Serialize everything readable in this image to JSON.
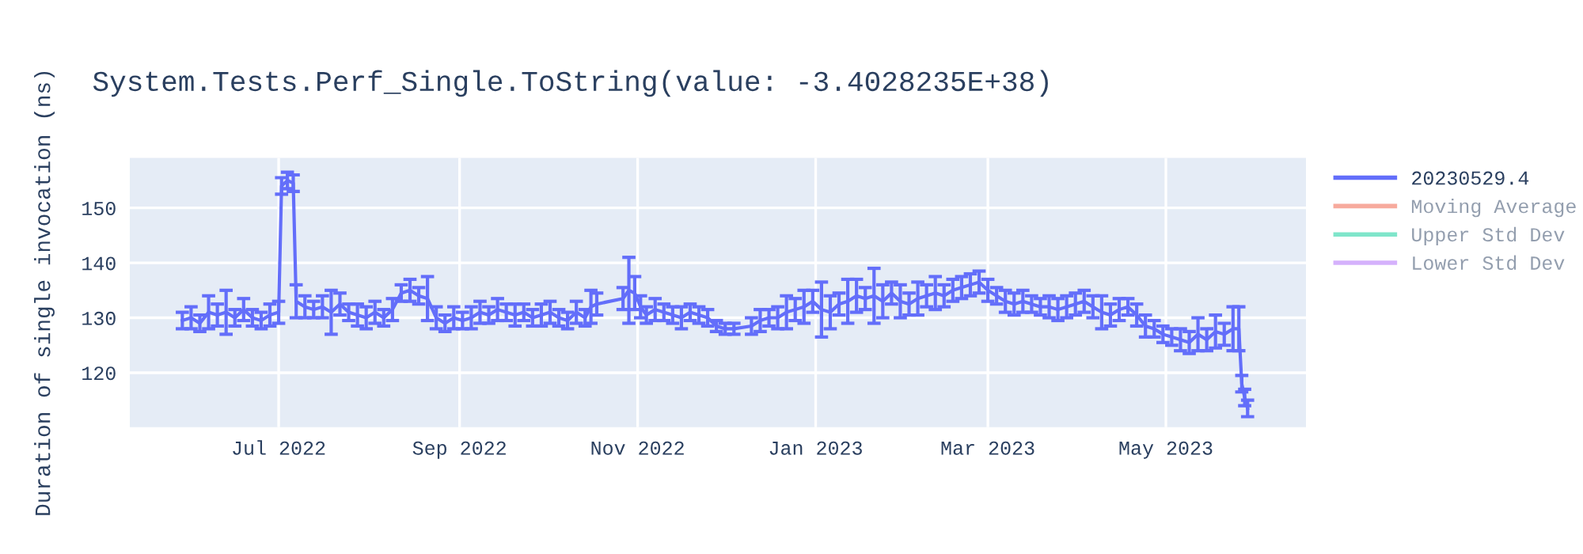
{
  "chart_data": {
    "type": "line",
    "title": "System.Tests.Perf_Single.ToString(value: -3.4028235E+38)",
    "ylabel": "Duration of single invocation (ns)",
    "x": [
      "2022-05-29",
      "2022-06-01",
      "2022-06-04",
      "2022-06-07",
      "2022-06-10",
      "2022-06-13",
      "2022-06-16",
      "2022-06-19",
      "2022-06-22",
      "2022-06-25",
      "2022-06-28",
      "2022-07-01",
      "2022-07-02",
      "2022-07-04",
      "2022-07-06",
      "2022-07-07",
      "2022-07-10",
      "2022-07-13",
      "2022-07-16",
      "2022-07-19",
      "2022-07-22",
      "2022-07-25",
      "2022-07-28",
      "2022-07-31",
      "2022-08-03",
      "2022-08-06",
      "2022-08-09",
      "2022-08-12",
      "2022-08-15",
      "2022-08-18",
      "2022-08-21",
      "2022-08-24",
      "2022-08-27",
      "2022-08-30",
      "2022-09-02",
      "2022-09-05",
      "2022-09-08",
      "2022-09-11",
      "2022-09-14",
      "2022-09-17",
      "2022-09-20",
      "2022-09-23",
      "2022-09-26",
      "2022-09-29",
      "2022-10-02",
      "2022-10-05",
      "2022-10-08",
      "2022-10-11",
      "2022-10-14",
      "2022-10-16",
      "2022-10-18",
      "2022-10-27",
      "2022-10-29",
      "2022-10-31",
      "2022-11-02",
      "2022-11-04",
      "2022-11-07",
      "2022-11-10",
      "2022-11-13",
      "2022-11-16",
      "2022-11-19",
      "2022-11-22",
      "2022-11-25",
      "2022-11-28",
      "2022-12-01",
      "2022-12-04",
      "2022-12-10",
      "2022-12-13",
      "2022-12-16",
      "2022-12-19",
      "2022-12-22",
      "2022-12-25",
      "2022-12-28",
      "2022-12-31",
      "2023-01-03",
      "2023-01-06",
      "2023-01-09",
      "2023-01-12",
      "2023-01-15",
      "2023-01-18",
      "2023-01-21",
      "2023-01-24",
      "2023-01-27",
      "2023-01-30",
      "2023-02-02",
      "2023-02-05",
      "2023-02-08",
      "2023-02-11",
      "2023-02-14",
      "2023-02-17",
      "2023-02-20",
      "2023-02-23",
      "2023-02-26",
      "2023-03-01",
      "2023-03-04",
      "2023-03-07",
      "2023-03-10",
      "2023-03-13",
      "2023-03-16",
      "2023-03-19",
      "2023-03-22",
      "2023-03-25",
      "2023-03-28",
      "2023-03-31",
      "2023-04-03",
      "2023-04-06",
      "2023-04-09",
      "2023-04-12",
      "2023-04-15",
      "2023-04-18",
      "2023-04-21",
      "2023-04-24",
      "2023-04-27",
      "2023-04-30",
      "2023-05-03",
      "2023-05-06",
      "2023-05-09",
      "2023-05-12",
      "2023-05-15",
      "2023-05-18",
      "2023-05-21",
      "2023-05-24",
      "2023-05-26",
      "2023-05-27",
      "2023-05-28",
      "2023-05-29"
    ],
    "series": [
      {
        "name": "20230529.4",
        "color": "#636efa",
        "values": [
          129.5,
          130,
          129,
          131,
          130.5,
          131,
          130,
          131.5,
          130,
          129.5,
          130.5,
          131,
          154,
          155,
          154.5,
          133,
          132,
          131.5,
          132,
          131,
          132.5,
          131,
          130.5,
          130,
          131,
          130,
          131.5,
          134.5,
          135,
          134,
          133.5,
          130,
          129,
          130,
          129.5,
          130,
          131,
          130.5,
          131.5,
          131,
          130.5,
          131,
          130,
          130.5,
          131,
          130,
          129.5,
          131,
          130,
          132,
          132.5,
          133.5,
          135,
          134.5,
          132,
          130.5,
          131.5,
          131,
          130.5,
          130,
          131,
          130.5,
          130,
          128.5,
          128,
          128,
          128.5,
          129.5,
          130,
          130,
          131,
          131.5,
          132,
          133,
          131.5,
          131,
          132.5,
          133,
          134,
          133.5,
          134,
          133,
          134.5,
          133,
          132.5,
          133.5,
          134,
          134.5,
          134,
          135,
          135.5,
          136,
          136.5,
          135,
          134,
          133,
          132.5,
          133,
          132.5,
          132,
          132,
          131.5,
          132,
          132.5,
          133,
          132,
          131,
          130.5,
          131.5,
          132,
          130.5,
          128.5,
          128,
          127,
          126.5,
          126,
          125.5,
          127,
          126,
          127.5,
          127,
          128,
          128,
          118,
          115.5,
          113.5
        ],
        "errors": [
          1.5,
          2,
          1.5,
          3,
          2,
          4,
          1.5,
          2,
          1.5,
          1.5,
          2,
          2,
          1.5,
          1.5,
          1.5,
          3,
          2,
          1.5,
          2,
          4,
          2,
          1.5,
          2,
          2,
          2,
          1.5,
          2,
          1.5,
          2,
          1.5,
          4,
          2,
          1.5,
          2,
          1.5,
          2,
          2,
          1.5,
          2,
          1.5,
          2,
          1.5,
          1.5,
          2,
          2,
          1.5,
          1.5,
          2,
          1.5,
          3,
          2,
          2,
          6,
          3,
          2,
          1.5,
          2,
          1.5,
          1.5,
          2,
          1.5,
          1.5,
          1.5,
          1,
          1,
          1,
          1.5,
          2,
          1.5,
          2,
          3,
          2,
          3,
          2,
          5,
          3,
          2,
          4,
          3,
          2,
          5,
          3,
          2,
          3,
          2,
          3,
          2,
          3,
          2,
          2,
          2,
          2,
          2,
          2,
          1.5,
          2,
          2,
          2,
          1.5,
          1.5,
          2,
          2,
          2,
          2,
          2,
          2,
          3,
          2,
          2,
          1.5,
          2,
          2,
          1.5,
          1.5,
          1.5,
          2,
          2,
          3,
          2,
          3,
          2,
          4,
          4,
          1.5,
          1.5,
          1.5
        ]
      },
      {
        "name": "Moving Average",
        "color": "#ef553b",
        "values": [
          null,
          null,
          null,
          null,
          null,
          null,
          null,
          null,
          null,
          null,
          null,
          null,
          null,
          null,
          null,
          null,
          null,
          null,
          null,
          null,
          null,
          null,
          null,
          null,
          null,
          null,
          null,
          null,
          null,
          null,
          null,
          null,
          null,
          null,
          null,
          null,
          null,
          null,
          null,
          null,
          null,
          null,
          null,
          null,
          null,
          null,
          null,
          null,
          null,
          null,
          null,
          null,
          null,
          null,
          null,
          null,
          null,
          null,
          null,
          null,
          null,
          null,
          null,
          null,
          null,
          null,
          null,
          null,
          null,
          null,
          null,
          null,
          null,
          null,
          null,
          null,
          null,
          null,
          null,
          null,
          null,
          null,
          null,
          null,
          null,
          null,
          null,
          null,
          null,
          null,
          null,
          null,
          null,
          null,
          null,
          null,
          null,
          null,
          null,
          null,
          null,
          null,
          null,
          null,
          null,
          null,
          null,
          null,
          null,
          null,
          null,
          null,
          null,
          null,
          null,
          null,
          null,
          null,
          null,
          null,
          null,
          null,
          null,
          null,
          null,
          null
        ]
      },
      {
        "name": "Upper Std Dev",
        "color": "#00cc96",
        "values": [
          null,
          null,
          null,
          null,
          null,
          null,
          null,
          null,
          null,
          null,
          null,
          null,
          null,
          null,
          null,
          null,
          null,
          null,
          null,
          null,
          null,
          null,
          null,
          null,
          null,
          null,
          null,
          null,
          null,
          null,
          null,
          null,
          null,
          null,
          null,
          null,
          null,
          null,
          null,
          null,
          null,
          null,
          null,
          null,
          null,
          null,
          null,
          null,
          null,
          null,
          null,
          null,
          null,
          null,
          null,
          null,
          null,
          null,
          null,
          null,
          null,
          null,
          null,
          null,
          null,
          null,
          null,
          null,
          null,
          null,
          null,
          null,
          null,
          null,
          null,
          null,
          null,
          null,
          null,
          null,
          null,
          null,
          null,
          null,
          null,
          null,
          null,
          null,
          null,
          null,
          null,
          null,
          null,
          null,
          null,
          null,
          null,
          null,
          null,
          null,
          null,
          null,
          null,
          null,
          null,
          null,
          null,
          null,
          null,
          null,
          null,
          null,
          null,
          null,
          null,
          null,
          null,
          null,
          null,
          null,
          null,
          null,
          null,
          null,
          null,
          null
        ]
      },
      {
        "name": "Lower Std Dev",
        "color": "#ab63fa",
        "values": [
          null,
          null,
          null,
          null,
          null,
          null,
          null,
          null,
          null,
          null,
          null,
          null,
          null,
          null,
          null,
          null,
          null,
          null,
          null,
          null,
          null,
          null,
          null,
          null,
          null,
          null,
          null,
          null,
          null,
          null,
          null,
          null,
          null,
          null,
          null,
          null,
          null,
          null,
          null,
          null,
          null,
          null,
          null,
          null,
          null,
          null,
          null,
          null,
          null,
          null,
          null,
          null,
          null,
          null,
          null,
          null,
          null,
          null,
          null,
          null,
          null,
          null,
          null,
          null,
          null,
          null,
          null,
          null,
          null,
          null,
          null,
          null,
          null,
          null,
          null,
          null,
          null,
          null,
          null,
          null,
          null,
          null,
          null,
          null,
          null,
          null,
          null,
          null,
          null,
          null,
          null,
          null,
          null,
          null,
          null,
          null,
          null,
          null,
          null,
          null,
          null,
          null,
          null,
          null,
          null,
          null,
          null,
          null,
          null,
          null,
          null,
          null,
          null,
          null,
          null,
          null,
          null,
          null,
          null,
          null,
          null,
          null,
          null,
          null,
          null,
          null
        ]
      }
    ],
    "xlim": [
      "2022-05-11",
      "2023-06-18"
    ],
    "xticks": [
      {
        "value": "2022-07-01",
        "label": "Jul 2022"
      },
      {
        "value": "2022-09-01",
        "label": "Sep 2022"
      },
      {
        "value": "2022-11-01",
        "label": "Nov 2022"
      },
      {
        "value": "2023-01-01",
        "label": "Jan 2023"
      },
      {
        "value": "2023-03-01",
        "label": "Mar 2023"
      },
      {
        "value": "2023-05-01",
        "label": "May 2023"
      }
    ],
    "ylim": [
      110.1,
      159.1
    ],
    "yticks": [
      120,
      130,
      140,
      150
    ],
    "grid": true,
    "legend": "top right",
    "marker": "none",
    "line_style": "solid"
  }
}
